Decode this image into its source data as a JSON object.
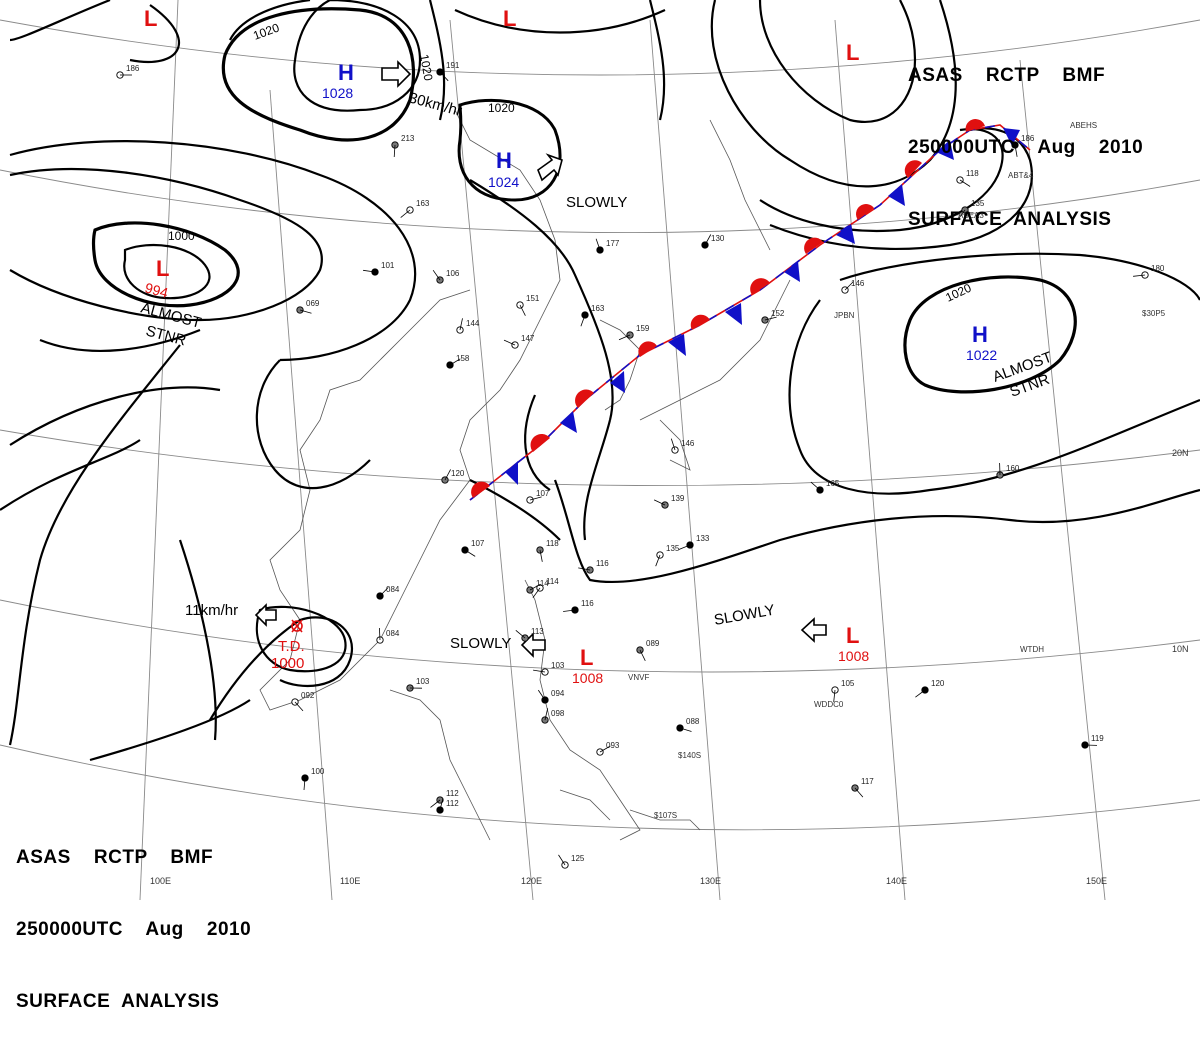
{
  "header": {
    "line1": "ASAS    RCTP    BMF",
    "line2": "250000UTC    Aug    2010",
    "line3": "SURFACE  ANALYSIS"
  },
  "colors": {
    "high": "#1010c8",
    "low": "#e01010",
    "isobar": "#000000",
    "grid": "#888888"
  },
  "lon_labels": [
    "100E",
    "110E",
    "120E",
    "130E",
    "140E",
    "150E"
  ],
  "lat_labels": [
    "10N",
    "20N"
  ],
  "isobar_labels": [
    "1020",
    "1020",
    "1020",
    "1000",
    "1020"
  ],
  "highs": [
    {
      "letter": "H",
      "pressure": "1028"
    },
    {
      "letter": "H",
      "pressure": "1024"
    },
    {
      "letter": "H",
      "pressure": "1022"
    }
  ],
  "lows": [
    {
      "letter": "L",
      "pressure": "994"
    },
    {
      "letter": "L",
      "pressure": "1008"
    },
    {
      "letter": "L",
      "pressure": "1008"
    },
    {
      "letter": "L",
      "pressure": ""
    },
    {
      "letter": "L",
      "pressure": ""
    },
    {
      "letter": "L",
      "pressure": ""
    }
  ],
  "td": {
    "label": "T.D.",
    "pressure": "1000"
  },
  "motion_labels": {
    "h1028": "30km/hr",
    "h1024": "SLOWLY",
    "td": "11km/hr",
    "l1008a": "SLOWLY",
    "l1008b": "SLOWLY",
    "l994_1": "ALMOST",
    "l994_2": "STNR",
    "h1022_1": "ALMOST",
    "h1022_2": "STNR"
  },
  "station_ids": [
    "ABEHS",
    "ABT&4",
    "ABEA3",
    "JPBN",
    "$30P5",
    "WTDH",
    "WDDC0",
    "VNVF",
    "$140S",
    "$107S"
  ],
  "station_values": [
    "186",
    "191",
    "213",
    "163",
    "101",
    "106",
    "144",
    "158",
    "069",
    "151",
    "163",
    "159",
    "147",
    "177",
    "120",
    "107",
    "107",
    "118",
    "114",
    "116",
    "113",
    "084",
    "084",
    "103",
    "092",
    "100",
    "112",
    "103",
    "094",
    "098",
    "093",
    "088",
    "089",
    "135",
    "133",
    "139",
    "146",
    "130",
    "152",
    "118",
    "186",
    "135",
    "180",
    "165",
    "160",
    "146",
    "119",
    "117",
    "105",
    "120",
    "116",
    "125",
    "112",
    "114"
  ]
}
